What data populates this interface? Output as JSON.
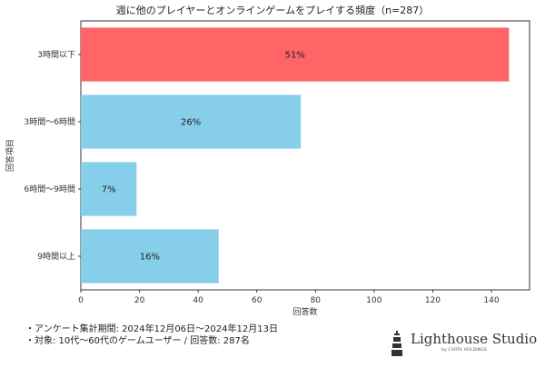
{
  "chart_data": {
    "type": "bar",
    "orientation": "horizontal",
    "title": "週に他のプレイヤーとオンラインゲームをプレイする頻度（n=287）",
    "xlabel": "回答数",
    "ylabel": "回答項目",
    "categories": [
      "3時間以下",
      "3時間〜6時間",
      "6時間〜9時間",
      "9時間以上"
    ],
    "values": [
      146,
      75,
      19,
      47
    ],
    "labels": [
      "51%",
      "26%",
      "7%",
      "16%"
    ],
    "colors": [
      "#ff6466",
      "#87ceeb",
      "#87ceeb",
      "#87ceeb"
    ],
    "xlim": [
      0,
      153
    ],
    "xticks": [
      0,
      20,
      40,
      60,
      80,
      100,
      120,
      140
    ],
    "grid": false
  },
  "notes": [
    "・アンケート集計期間: 2024年12月06日〜2024年12月13日",
    "・対象: 10代〜60代のゲームユーザー / 回答数: 287名"
  ],
  "logo": {
    "name": "Lighthouse Studio",
    "sub": "by CARTA HOLDINGS"
  }
}
